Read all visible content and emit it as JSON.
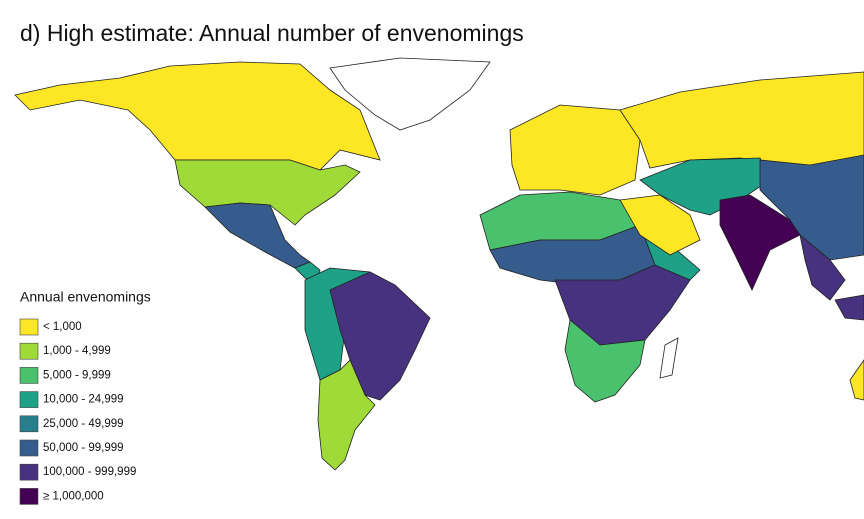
{
  "title": "d) High estimate: Annual number of envenomings",
  "legend": {
    "title": "Annual envenomings",
    "items": [
      {
        "label": "< 1,000",
        "color": "#fde725"
      },
      {
        "label": "1,000 - 4,999",
        "color": "#a0da39"
      },
      {
        "label": "5,000 - 9,999",
        "color": "#4ac16d"
      },
      {
        "label": "10,000 - 24,999",
        "color": "#1fa187"
      },
      {
        "label": "25,000 - 49,999",
        "color": "#277f8e"
      },
      {
        "label": "50,000 - 99,999",
        "color": "#365c8d"
      },
      {
        "label": "100,000 - 999,999",
        "color": "#46327e"
      },
      {
        "label": "≥ 1,000,000",
        "color": "#440154"
      }
    ]
  }
}
